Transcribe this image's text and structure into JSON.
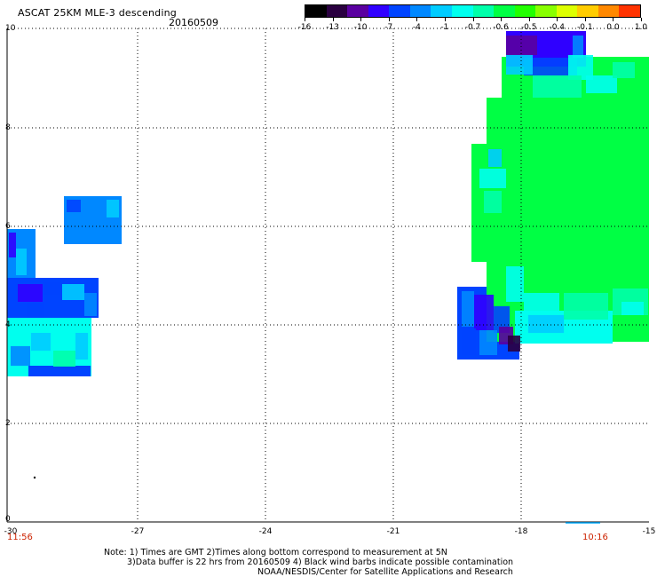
{
  "header": {
    "title": "ASCAT 25KM MLE-3 descending",
    "date": "20160509"
  },
  "colorbar": {
    "colors": [
      "#000000",
      "#2a0040",
      "#5a00a0",
      "#3000ff",
      "#0044ff",
      "#0088ff",
      "#00ccff",
      "#00ffee",
      "#00ffaa",
      "#00ff44",
      "#22ff00",
      "#88ff00",
      "#ddff00",
      "#ffcc00",
      "#ff8800",
      "#ff3300"
    ],
    "ticks": [
      "-16",
      "-13",
      "-10",
      "-7",
      "-4",
      "-1",
      "-0.7",
      "-0.6",
      "-0.5",
      "-0.4",
      "-0.1",
      "0.0",
      "1.0"
    ]
  },
  "axes": {
    "x_ticks": [
      "-30",
      "-27",
      "-24",
      "-21",
      "-18",
      "-15"
    ],
    "y_ticks": [
      "10",
      "8",
      "6",
      "4",
      "2",
      "0"
    ],
    "grid": "dotted",
    "time_left": "11:56",
    "time_right": "10:16"
  },
  "notes": {
    "line1": "Note: 1) Times are GMT 2)Times along bottom correspond to measurement at 5N",
    "line2": "3)Data buffer is 22 hrs from 20160509 4) Black wind barbs indicate possible contamination",
    "line3": "NOAA/NESDIS/Center for Satellite Applications and Research"
  }
}
